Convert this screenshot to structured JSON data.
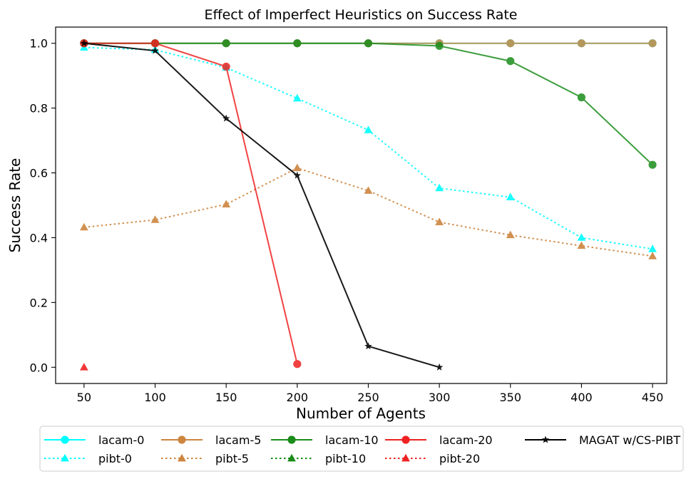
{
  "chart_data": {
    "type": "line",
    "title": "Effect of Imperfect Heuristics on Success Rate",
    "xlabel": "Number of Agents",
    "ylabel": "Success Rate",
    "x": [
      50,
      100,
      150,
      200,
      250,
      300,
      350,
      400,
      450
    ],
    "x_ticks": [
      50,
      100,
      150,
      200,
      250,
      300,
      350,
      400,
      450
    ],
    "y_ticks": [
      0.0,
      0.2,
      0.4,
      0.6,
      0.8,
      1.0
    ],
    "y_tick_labels": [
      "0.0",
      "0.2",
      "0.4",
      "0.6",
      "0.8",
      "1.0"
    ],
    "xlim": [
      30,
      460
    ],
    "ylim": [
      -0.05,
      1.05
    ],
    "grid": false,
    "legend_position": "bottom-outside",
    "series": [
      {
        "name": "lacam-0",
        "color": "#00ffff",
        "dash": "solid",
        "marker": "circle",
        "points": [
          [
            50,
            1.0
          ],
          [
            100,
            1.0
          ],
          [
            150,
            1.0
          ],
          [
            200,
            1.0
          ],
          [
            250,
            1.0
          ],
          [
            300,
            1.0
          ],
          [
            350,
            1.0
          ],
          [
            400,
            1.0
          ],
          [
            450,
            1.0
          ]
        ]
      },
      {
        "name": "pibt-0",
        "color": "#00ffff",
        "dash": "dotted",
        "marker": "triangle",
        "points": [
          [
            50,
            0.987
          ],
          [
            100,
            0.98
          ],
          [
            150,
            0.925
          ],
          [
            200,
            0.83
          ],
          [
            250,
            0.732
          ],
          [
            300,
            0.553
          ],
          [
            350,
            0.525
          ],
          [
            400,
            0.4
          ],
          [
            450,
            0.365
          ]
        ]
      },
      {
        "name": "lacam-5",
        "color": "#cd853f",
        "dash": "solid",
        "marker": "circle",
        "points": [
          [
            50,
            1.0
          ],
          [
            100,
            1.0
          ],
          [
            150,
            1.0
          ],
          [
            200,
            1.0
          ],
          [
            250,
            1.0
          ],
          [
            300,
            1.0
          ],
          [
            350,
            1.0
          ],
          [
            400,
            1.0
          ],
          [
            450,
            1.0
          ]
        ]
      },
      {
        "name": "pibt-5",
        "color": "#cd853f",
        "dash": "dotted",
        "marker": "triangle",
        "points": [
          [
            50,
            0.432
          ],
          [
            100,
            0.455
          ],
          [
            150,
            0.503
          ],
          [
            200,
            0.615
          ],
          [
            250,
            0.545
          ],
          [
            300,
            0.448
          ],
          [
            350,
            0.408
          ],
          [
            400,
            0.375
          ],
          [
            450,
            0.343
          ]
        ]
      },
      {
        "name": "lacam-10",
        "color": "#1a8c1a",
        "dash": "solid",
        "marker": "circle",
        "points": [
          [
            50,
            1.0
          ],
          [
            100,
            1.0
          ],
          [
            150,
            1.0
          ],
          [
            200,
            1.0
          ],
          [
            250,
            1.0
          ],
          [
            300,
            0.992
          ],
          [
            350,
            0.945
          ],
          [
            400,
            0.833
          ],
          [
            450,
            0.625
          ]
        ]
      },
      {
        "name": "pibt-10",
        "color": "#1a8c1a",
        "dash": "dotted",
        "marker": "triangle",
        "points": []
      },
      {
        "name": "lacam-20",
        "color": "#ee2222",
        "dash": "solid",
        "marker": "circle",
        "points": [
          [
            50,
            1.0
          ],
          [
            100,
            1.0
          ],
          [
            150,
            0.928
          ],
          [
            200,
            0.01
          ]
        ]
      },
      {
        "name": "pibt-20",
        "color": "#ee2222",
        "dash": "dotted",
        "marker": "triangle",
        "points": [
          [
            50,
            0.0
          ]
        ]
      },
      {
        "name": "MAGAT w/CS-PIBT",
        "color": "#000000",
        "dash": "solid",
        "marker": "star",
        "points": [
          [
            50,
            1.0
          ],
          [
            100,
            0.977
          ],
          [
            150,
            0.768
          ],
          [
            200,
            0.592
          ],
          [
            250,
            0.065
          ],
          [
            300,
            0.0
          ]
        ]
      }
    ],
    "legend_order": [
      "lacam-0",
      "lacam-5",
      "lacam-10",
      "lacam-20",
      "MAGAT w/CS-PIBT",
      "pibt-0",
      "pibt-5",
      "pibt-10",
      "pibt-20"
    ]
  }
}
